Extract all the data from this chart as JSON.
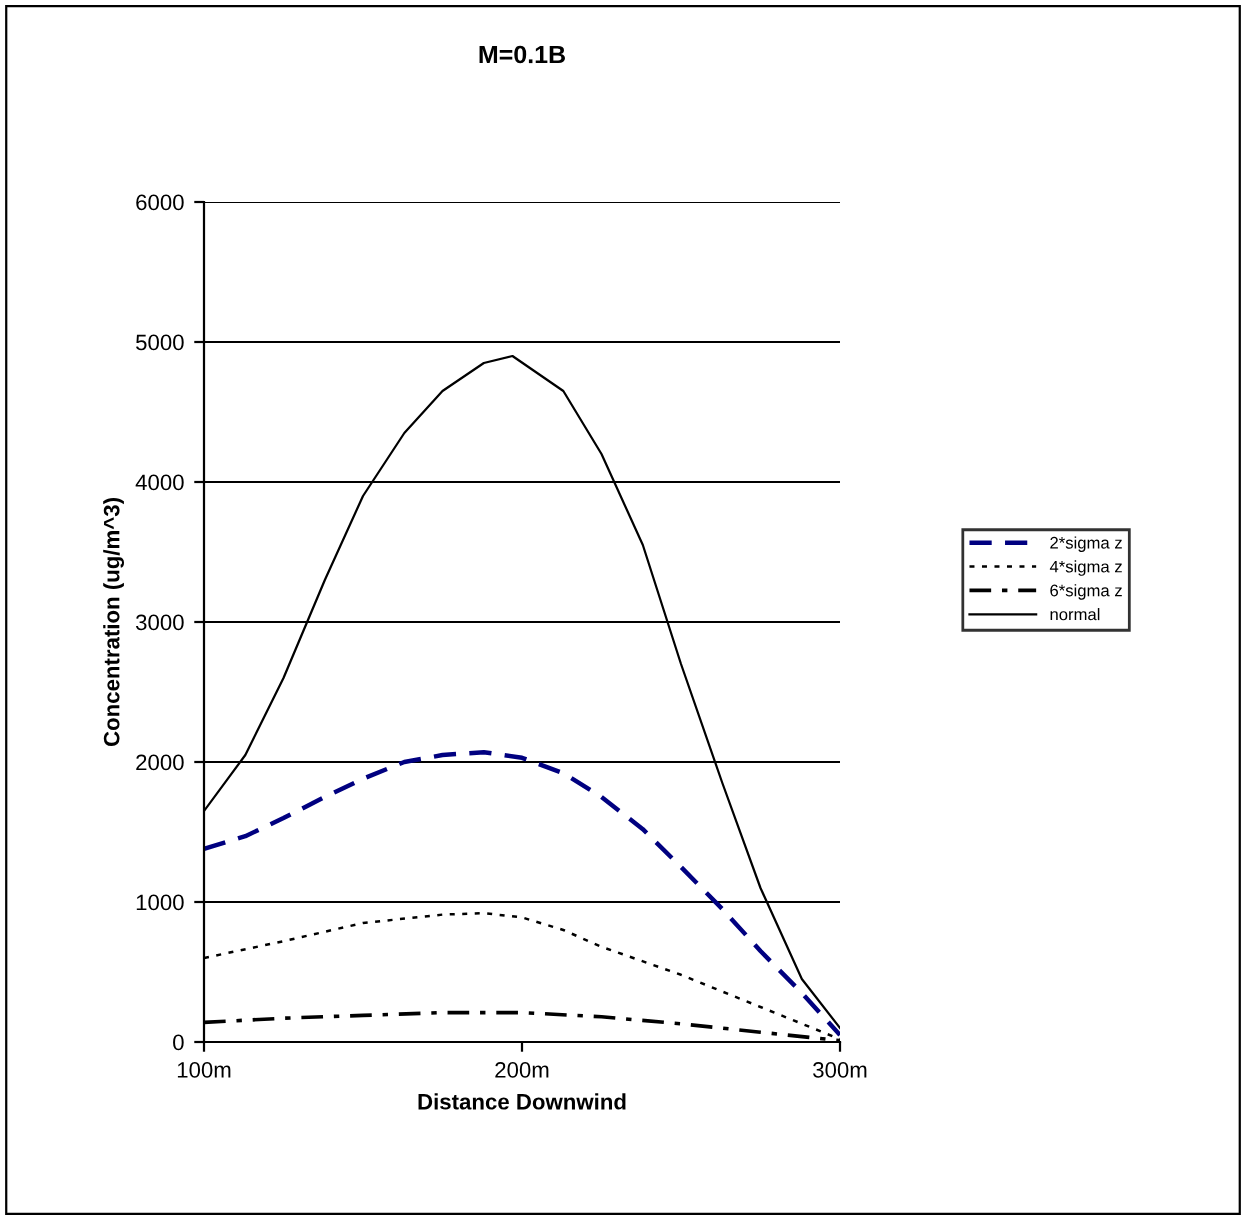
{
  "chart_data": {
    "type": "line",
    "title": "M=0.1B",
    "xlabel": "Distance Downwind",
    "ylabel": "Concentration (ug/m^3)",
    "xlim": [
      100,
      300
    ],
    "xticks": [
      {
        "value": 100,
        "label": "100m"
      },
      {
        "value": 200,
        "label": "200m"
      },
      {
        "value": 300,
        "label": "300m"
      }
    ],
    "ylim": [
      0,
      6000
    ],
    "yticks": [
      0,
      1000,
      2000,
      3000,
      4000,
      5000,
      6000
    ],
    "grid": "y",
    "legend": "right",
    "series": [
      {
        "name": "2*sigma z",
        "color": "#000080",
        "line_style": "dashed",
        "x": [
          100,
          113,
          125,
          138,
          150,
          163,
          175,
          188,
          200,
          213,
          225,
          238,
          250,
          263,
          275,
          288,
          300
        ],
        "values": [
          1380,
          1470,
          1600,
          1750,
          1880,
          2000,
          2050,
          2070,
          2030,
          1920,
          1750,
          1520,
          1250,
          950,
          650,
          350,
          50
        ]
      },
      {
        "name": "4*sigma z",
        "color": "#000000",
        "line_style": "dotted",
        "x": [
          100,
          125,
          150,
          175,
          188,
          200,
          213,
          225,
          250,
          275,
          300
        ],
        "values": [
          600,
          720,
          850,
          910,
          920,
          890,
          800,
          680,
          480,
          250,
          20
        ]
      },
      {
        "name": "6*sigma z",
        "color": "#000000",
        "line_style": "dashdot",
        "x": [
          100,
          125,
          150,
          175,
          200,
          225,
          250,
          275,
          300
        ],
        "values": [
          140,
          170,
          190,
          210,
          210,
          180,
          130,
          70,
          10
        ]
      },
      {
        "name": "normal",
        "color": "#000000",
        "line_style": "solid",
        "x": [
          100,
          113,
          125,
          138,
          150,
          163,
          175,
          188,
          197,
          213,
          225,
          238,
          250,
          263,
          275,
          288,
          300
        ],
        "values": [
          1650,
          2050,
          2600,
          3300,
          3900,
          4350,
          4650,
          4850,
          4900,
          4650,
          4200,
          3550,
          2700,
          1850,
          1100,
          450,
          100
        ]
      }
    ]
  }
}
